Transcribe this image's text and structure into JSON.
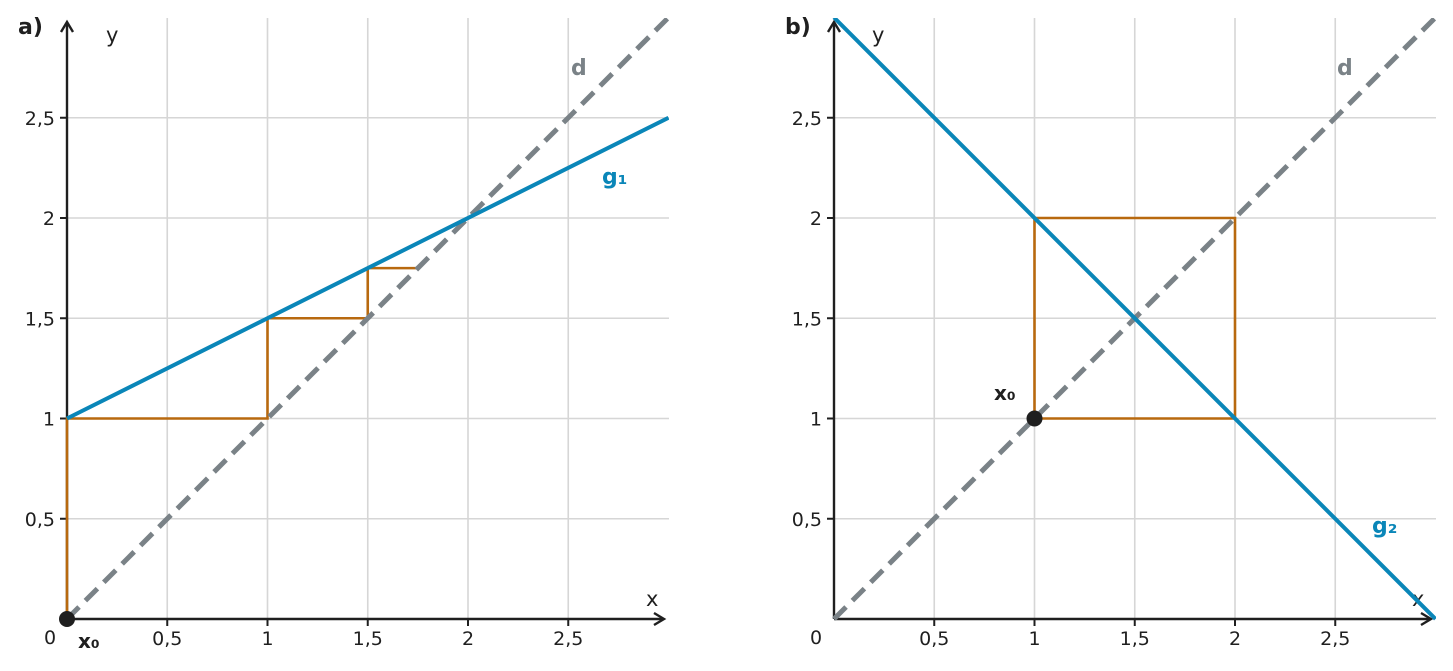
{
  "chart_data": [
    {
      "type": "line",
      "panel_label": "a)",
      "xlabel": "x",
      "ylabel": "y",
      "xlim": [
        0,
        3
      ],
      "ylim": [
        0,
        3
      ],
      "x_ticks": [
        0.5,
        1,
        1.5,
        2,
        2.5
      ],
      "x_tick_labels": [
        "0,5",
        "1",
        "1,5",
        "2",
        "2,5"
      ],
      "y_ticks": [
        0.5,
        1,
        1.5,
        2,
        2.5
      ],
      "y_tick_labels": [
        "0,5",
        "1",
        "1,5",
        "2",
        "2,5"
      ],
      "origin_label": "0",
      "grid": true,
      "series": [
        {
          "name": "d",
          "style": "dashed",
          "color": "#7a8287",
          "points": [
            [
              0,
              0
            ],
            [
              3,
              3
            ]
          ]
        },
        {
          "name": "g₁",
          "style": "solid",
          "color": "#0a86b8",
          "points": [
            [
              0,
              1
            ],
            [
              3,
              2.5
            ]
          ]
        },
        {
          "name": "",
          "style": "solid",
          "color": "#b8690f",
          "points": [
            [
              0,
              0
            ],
            [
              0,
              1
            ],
            [
              1,
              1
            ],
            [
              1,
              1.5
            ],
            [
              1.5,
              1.5
            ],
            [
              1.5,
              1.75
            ],
            [
              1.75,
              1.75
            ]
          ]
        }
      ],
      "start_point": {
        "label": "x₀",
        "x": 0,
        "y": 0
      }
    },
    {
      "type": "line",
      "panel_label": "b)",
      "xlabel": "x",
      "ylabel": "y",
      "xlim": [
        0,
        3
      ],
      "ylim": [
        0,
        3
      ],
      "x_ticks": [
        0.5,
        1,
        1.5,
        2,
        2.5
      ],
      "x_tick_labels": [
        "0,5",
        "1",
        "1,5",
        "2",
        "2,5"
      ],
      "y_ticks": [
        0.5,
        1,
        1.5,
        2,
        2.5
      ],
      "y_tick_labels": [
        "0,5",
        "1",
        "1,5",
        "2",
        "2,5"
      ],
      "origin_label": "0",
      "grid": true,
      "series": [
        {
          "name": "d",
          "style": "dashed",
          "color": "#7a8287",
          "points": [
            [
              0,
              0
            ],
            [
              3,
              3
            ]
          ]
        },
        {
          "name": "g₂",
          "style": "solid",
          "color": "#0a86b8",
          "points": [
            [
              0,
              3
            ],
            [
              3,
              0
            ]
          ]
        },
        {
          "name": "",
          "style": "solid",
          "color": "#b8690f",
          "points": [
            [
              1,
              1
            ],
            [
              1,
              2
            ],
            [
              2,
              2
            ],
            [
              2,
              1
            ],
            [
              1,
              1
            ]
          ]
        }
      ],
      "start_point": {
        "label": "x₀",
        "x": 1,
        "y": 1
      }
    }
  ]
}
